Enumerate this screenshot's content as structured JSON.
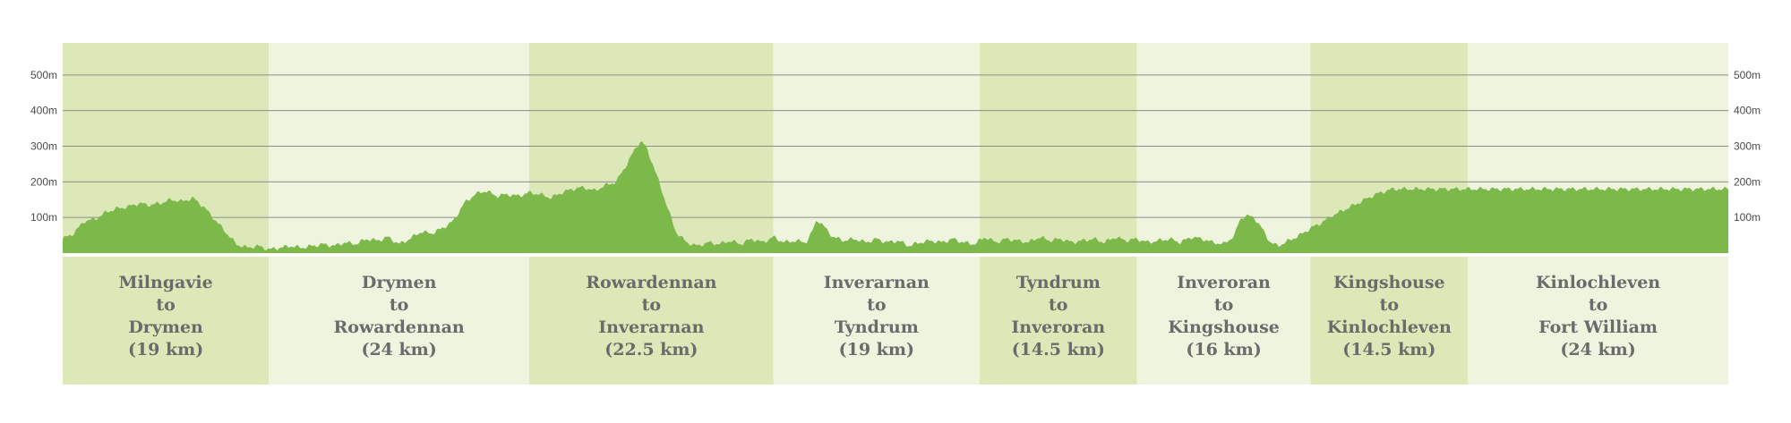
{
  "chart_data": {
    "type": "area",
    "title": "",
    "xlabel": "",
    "ylabel": "",
    "ylim": [
      0,
      590
    ],
    "y_ticks": [
      {
        "value": 100,
        "label": "100m"
      },
      {
        "value": 200,
        "label": "200m"
      },
      {
        "value": 300,
        "label": "300m"
      },
      {
        "value": 400,
        "label": "400m"
      },
      {
        "value": 500,
        "label": "500m"
      }
    ],
    "grid": true,
    "colors": {
      "fill": "#7db84a",
      "band_dark": "#dce8b8",
      "band_light": "#eef4de",
      "grid": "#8c8c8c",
      "label": "#6b6b6b"
    },
    "segments": [
      {
        "lines": [
          "Milngavie",
          "to",
          "Drymen",
          "(19 km)"
        ],
        "km": 19
      },
      {
        "lines": [
          "Drymen",
          "to",
          "Rowardennan",
          "(24 km)"
        ],
        "km": 24
      },
      {
        "lines": [
          "Rowardennan",
          "to",
          "Inverarnan",
          "(22.5 km)"
        ],
        "km": 22.5
      },
      {
        "lines": [
          "Inverarnan",
          "to",
          "Tyndrum",
          "(19 km)"
        ],
        "km": 19
      },
      {
        "lines": [
          "Tyndrum",
          "to",
          "Inveroran",
          "(14.5 km)"
        ],
        "km": 14.5
      },
      {
        "lines": [
          "Inveroran",
          "to",
          "Kingshouse",
          "(16 km)"
        ],
        "km": 16
      },
      {
        "lines": [
          "Kingshouse",
          "to",
          "Kinlochleven",
          "(14.5 km)"
        ],
        "km": 14.5
      },
      {
        "lines": [
          "Kinlochleven",
          "to",
          "Fort William",
          "(24 km)"
        ],
        "km": 24
      }
    ],
    "x_range_km": [
      0,
      153.5
    ],
    "profile": [
      [
        0,
        40
      ],
      [
        1,
        55
      ],
      [
        2,
        90
      ],
      [
        3,
        95
      ],
      [
        4,
        115
      ],
      [
        5,
        125
      ],
      [
        6,
        130
      ],
      [
        7,
        140
      ],
      [
        8,
        135
      ],
      [
        9,
        140
      ],
      [
        10,
        150
      ],
      [
        11,
        145
      ],
      [
        12,
        155
      ],
      [
        13,
        130
      ],
      [
        14,
        95
      ],
      [
        15,
        60
      ],
      [
        16,
        25
      ],
      [
        17,
        15
      ],
      [
        18,
        20
      ],
      [
        19,
        10
      ],
      [
        20,
        15
      ],
      [
        21,
        20
      ],
      [
        22,
        15
      ],
      [
        23,
        20
      ],
      [
        24,
        25
      ],
      [
        25,
        20
      ],
      [
        26,
        30
      ],
      [
        27,
        25
      ],
      [
        28,
        40
      ],
      [
        29,
        35
      ],
      [
        30,
        45
      ],
      [
        31,
        25
      ],
      [
        32,
        40
      ],
      [
        33,
        60
      ],
      [
        34,
        55
      ],
      [
        35,
        70
      ],
      [
        36,
        90
      ],
      [
        37,
        140
      ],
      [
        38,
        165
      ],
      [
        39,
        175
      ],
      [
        40,
        160
      ],
      [
        41,
        165
      ],
      [
        42,
        160
      ],
      [
        43,
        170
      ],
      [
        44,
        165
      ],
      [
        45,
        155
      ],
      [
        46,
        170
      ],
      [
        47,
        180
      ],
      [
        48,
        185
      ],
      [
        49,
        175
      ],
      [
        50,
        190
      ],
      [
        51,
        200
      ],
      [
        52,
        250
      ],
      [
        52.8,
        295
      ],
      [
        53.3,
        315
      ],
      [
        53.8,
        295
      ],
      [
        54.5,
        240
      ],
      [
        55.5,
        150
      ],
      [
        56.5,
        60
      ],
      [
        57.5,
        30
      ],
      [
        58.5,
        20
      ],
      [
        59.5,
        30
      ],
      [
        60.5,
        25
      ],
      [
        61.5,
        35
      ],
      [
        62.5,
        25
      ],
      [
        63.5,
        40
      ],
      [
        64.5,
        30
      ],
      [
        65.5,
        45
      ],
      [
        66.5,
        30
      ],
      [
        67.5,
        35
      ],
      [
        68.5,
        30
      ],
      [
        69,
        55
      ],
      [
        69.5,
        95
      ],
      [
        70,
        80
      ],
      [
        71,
        45
      ],
      [
        72,
        35
      ],
      [
        73,
        40
      ],
      [
        74,
        30
      ],
      [
        75,
        40
      ],
      [
        76,
        30
      ],
      [
        77,
        35
      ],
      [
        78,
        20
      ],
      [
        79,
        30
      ],
      [
        80,
        35
      ],
      [
        81,
        30
      ],
      [
        82,
        40
      ],
      [
        83,
        30
      ],
      [
        84,
        25
      ],
      [
        85,
        45
      ],
      [
        86,
        30
      ],
      [
        87,
        40
      ],
      [
        88,
        35
      ],
      [
        89,
        30
      ],
      [
        90,
        45
      ],
      [
        91,
        35
      ],
      [
        92,
        40
      ],
      [
        93,
        30
      ],
      [
        94,
        35
      ],
      [
        95,
        40
      ],
      [
        96,
        30
      ],
      [
        97,
        45
      ],
      [
        98,
        35
      ],
      [
        99,
        40
      ],
      [
        100,
        30
      ],
      [
        101,
        35
      ],
      [
        102,
        40
      ],
      [
        103,
        30
      ],
      [
        104,
        45
      ],
      [
        105,
        40
      ],
      [
        106,
        30
      ],
      [
        107,
        25
      ],
      [
        108,
        50
      ],
      [
        108.5,
        95
      ],
      [
        109,
        105
      ],
      [
        109.8,
        100
      ],
      [
        110.5,
        70
      ],
      [
        111.3,
        30
      ],
      [
        112,
        20
      ],
      [
        113,
        35
      ],
      [
        114,
        50
      ],
      [
        115,
        70
      ],
      [
        116,
        85
      ],
      [
        117,
        105
      ],
      [
        118,
        120
      ],
      [
        119,
        135
      ],
      [
        120,
        150
      ],
      [
        121,
        165
      ],
      [
        122,
        175
      ],
      [
        122.6,
        180
      ]
    ]
  }
}
